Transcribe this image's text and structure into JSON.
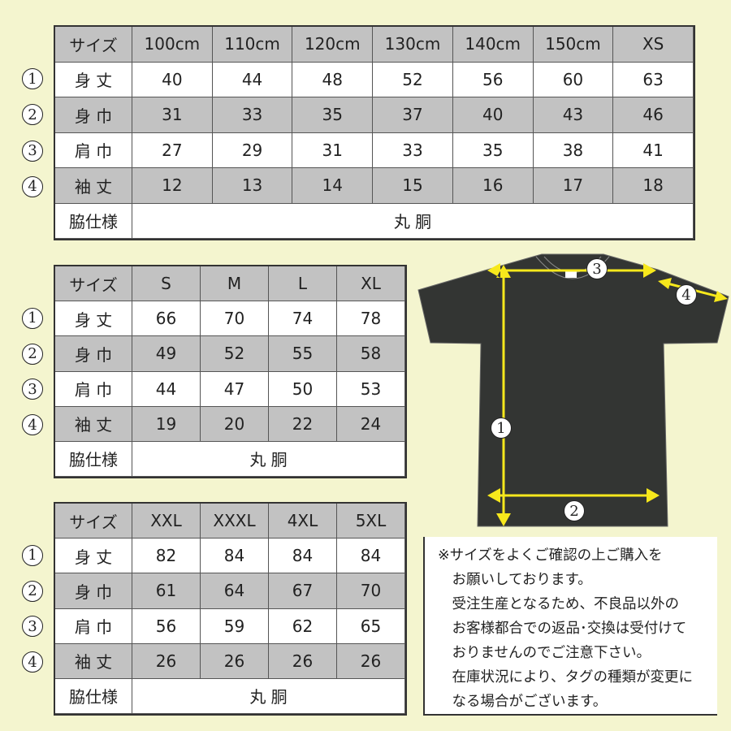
{
  "tables": [
    {
      "header": [
        "サイズ",
        "100cm",
        "110cm",
        "120cm",
        "130cm",
        "140cm",
        "150cm",
        "XS"
      ],
      "rows": [
        {
          "num": "1",
          "label": "身 丈",
          "values": [
            "40",
            "44",
            "48",
            "52",
            "56",
            "60",
            "63"
          ]
        },
        {
          "num": "2",
          "label": "身 巾",
          "values": [
            "31",
            "33",
            "35",
            "37",
            "40",
            "43",
            "46"
          ]
        },
        {
          "num": "3",
          "label": "肩 巾",
          "values": [
            "27",
            "29",
            "31",
            "33",
            "35",
            "38",
            "41"
          ]
        },
        {
          "num": "4",
          "label": "袖 丈",
          "values": [
            "12",
            "13",
            "14",
            "15",
            "16",
            "17",
            "18"
          ]
        }
      ],
      "side_label": "脇仕様",
      "side_value": "丸 胴"
    },
    {
      "header": [
        "サイズ",
        "S",
        "M",
        "L",
        "XL"
      ],
      "rows": [
        {
          "num": "1",
          "label": "身 丈",
          "values": [
            "66",
            "70",
            "74",
            "78"
          ]
        },
        {
          "num": "2",
          "label": "身 巾",
          "values": [
            "49",
            "52",
            "55",
            "58"
          ]
        },
        {
          "num": "3",
          "label": "肩 巾",
          "values": [
            "44",
            "47",
            "50",
            "53"
          ]
        },
        {
          "num": "4",
          "label": "袖 丈",
          "values": [
            "19",
            "20",
            "22",
            "24"
          ]
        }
      ],
      "side_label": "脇仕様",
      "side_value": "丸 胴"
    },
    {
      "header": [
        "サイズ",
        "XXL",
        "XXXL",
        "4XL",
        "5XL"
      ],
      "rows": [
        {
          "num": "1",
          "label": "身 丈",
          "values": [
            "82",
            "84",
            "84",
            "84"
          ]
        },
        {
          "num": "2",
          "label": "身 巾",
          "values": [
            "61",
            "64",
            "67",
            "70"
          ]
        },
        {
          "num": "3",
          "label": "肩 巾",
          "values": [
            "56",
            "59",
            "62",
            "65"
          ]
        },
        {
          "num": "4",
          "label": "袖 丈",
          "values": [
            "26",
            "26",
            "26",
            "26"
          ]
        }
      ],
      "side_label": "脇仕様",
      "side_value": "丸 胴"
    }
  ],
  "diagram": {
    "labels": [
      "1",
      "2",
      "3",
      "4"
    ],
    "shirt_color": "#333533",
    "arrow_color": "#f7e81c"
  },
  "note": [
    "※サイズをよくご確認の上ご購入を",
    "　お願いしております。",
    "　受注生産となるため、不良品以外の",
    "　お客様都合での返品･交換は受付けて",
    "　おりませんのでご注意下さい。",
    "　在庫状況により、タグの種類が変更に",
    "　なる場合がございます。"
  ]
}
